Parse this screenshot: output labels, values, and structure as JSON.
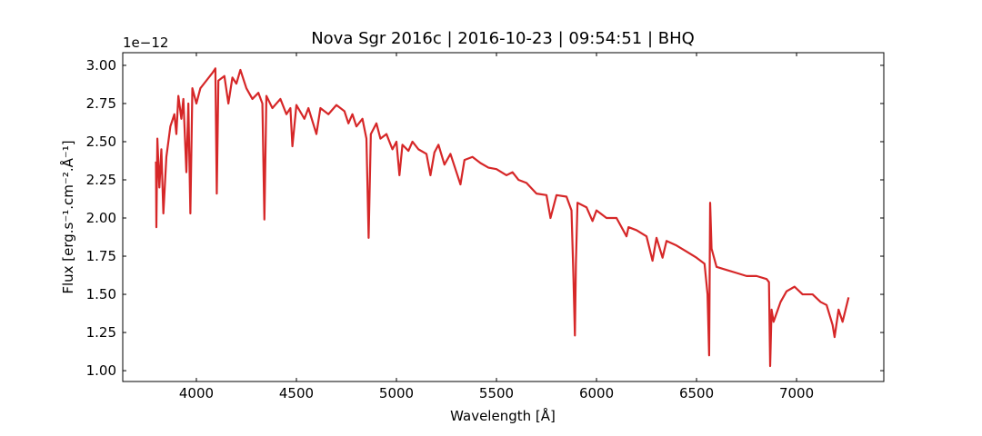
{
  "chart_data": {
    "type": "line",
    "title": "Nova Sgr 2016c | 2016-10-23 | 09:54:51 | BHQ",
    "x_label": "Wavelength [Å]",
    "y_label": "Flux [erg.s⁻¹.cm⁻².Å⁻¹]",
    "y_offset_label": "1e−12",
    "color": "#d62728",
    "xlim": [
      3632,
      7436
    ],
    "ylim": [
      0.929,
      3.083
    ],
    "xticks": [
      4000,
      4500,
      5000,
      5500,
      6000,
      6500,
      7000
    ],
    "yticks": [
      {
        "value": 1,
        "label": "1.00"
      },
      {
        "value": 1.25,
        "label": "1.25"
      },
      {
        "value": 1.5,
        "label": "1.50"
      },
      {
        "value": 1.75,
        "label": "1.75"
      },
      {
        "value": 2,
        "label": "2.00"
      },
      {
        "value": 2.25,
        "label": "2.25"
      },
      {
        "value": 2.5,
        "label": "2.50"
      },
      {
        "value": 2.75,
        "label": "2.75"
      },
      {
        "value": 3,
        "label": "3.00"
      }
    ],
    "x": [
      3798,
      3800,
      3805,
      3815,
      3825,
      3835,
      3850,
      3870,
      3890,
      3900,
      3910,
      3925,
      3935,
      3950,
      3960,
      3970,
      3980,
      4000,
      4020,
      4050,
      4080,
      4095,
      4102,
      4110,
      4140,
      4160,
      4180,
      4200,
      4220,
      4250,
      4280,
      4310,
      4330,
      4340,
      4350,
      4380,
      4420,
      4450,
      4470,
      4480,
      4500,
      4540,
      4560,
      4600,
      4620,
      4660,
      4700,
      4740,
      4760,
      4780,
      4800,
      4830,
      4850,
      4861,
      4872,
      4900,
      4920,
      4950,
      4980,
      5000,
      5015,
      5030,
      5060,
      5080,
      5110,
      5150,
      5170,
      5190,
      5210,
      5240,
      5270,
      5300,
      5320,
      5340,
      5380,
      5420,
      5460,
      5500,
      5550,
      5580,
      5610,
      5650,
      5700,
      5750,
      5770,
      5800,
      5850,
      5875,
      5885,
      5892,
      5897,
      5905,
      5950,
      5980,
      6000,
      6050,
      6100,
      6150,
      6160,
      6200,
      6250,
      6280,
      6300,
      6330,
      6350,
      6400,
      6450,
      6500,
      6540,
      6555,
      6563,
      6568,
      6575,
      6600,
      6650,
      6700,
      6750,
      6800,
      6850,
      6862,
      6868,
      6875,
      6885,
      6920,
      6950,
      6990,
      7030,
      7080,
      7120,
      7150,
      7180,
      7190,
      7210,
      7230,
      7260
    ],
    "values": [
      2.37,
      1.94,
      2.52,
      2.2,
      2.45,
      2.03,
      2.4,
      2.6,
      2.68,
      2.55,
      2.8,
      2.65,
      2.78,
      2.3,
      2.75,
      2.03,
      2.85,
      2.75,
      2.85,
      2.9,
      2.95,
      2.98,
      2.16,
      2.9,
      2.93,
      2.75,
      2.92,
      2.88,
      2.97,
      2.85,
      2.78,
      2.82,
      2.75,
      1.99,
      2.8,
      2.72,
      2.78,
      2.68,
      2.72,
      2.47,
      2.74,
      2.65,
      2.72,
      2.55,
      2.72,
      2.68,
      2.74,
      2.7,
      2.62,
      2.68,
      2.6,
      2.65,
      2.52,
      1.87,
      2.55,
      2.62,
      2.52,
      2.55,
      2.45,
      2.5,
      2.28,
      2.48,
      2.44,
      2.5,
      2.45,
      2.42,
      2.28,
      2.43,
      2.48,
      2.35,
      2.42,
      2.3,
      2.22,
      2.38,
      2.4,
      2.36,
      2.33,
      2.32,
      2.28,
      2.3,
      2.25,
      2.23,
      2.16,
      2.15,
      2.0,
      2.15,
      2.14,
      2.05,
      1.6,
      1.23,
      1.7,
      2.1,
      2.07,
      1.98,
      2.05,
      2.0,
      2.0,
      1.88,
      1.94,
      1.92,
      1.88,
      1.72,
      1.87,
      1.74,
      1.85,
      1.82,
      1.78,
      1.74,
      1.7,
      1.5,
      1.1,
      2.1,
      1.8,
      1.68,
      1.66,
      1.64,
      1.62,
      1.62,
      1.6,
      1.58,
      1.03,
      1.4,
      1.32,
      1.45,
      1.52,
      1.55,
      1.5,
      1.5,
      1.45,
      1.43,
      1.3,
      1.22,
      1.4,
      1.32,
      1.48
    ]
  }
}
